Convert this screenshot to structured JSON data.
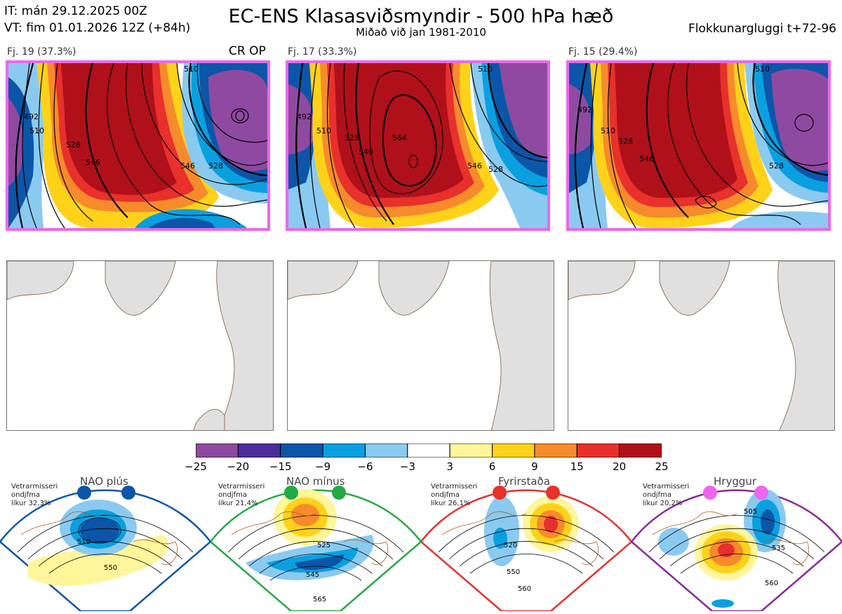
{
  "header": {
    "it": "IT: mán 29.12.2025 00Z",
    "vt": "VT: fim 01.01.2026 12Z  (+84h)",
    "title": "EC-ENS Klasasviðsmyndir - 500 hPa hæð",
    "subtitle": "Miðað við jan 1981-2010",
    "window": "Flokkunargluggi t+72-96"
  },
  "clusters": [
    {
      "label": "Fj. 19 (37.3%)",
      "extra": "CR OP",
      "border": "#ee66ee",
      "contour_labels": [
        "492",
        "510",
        "528",
        "546",
        "546",
        "528",
        "510"
      ]
    },
    {
      "label": "Fj. 17 (33.3%)",
      "extra": "",
      "border": "#ee66ee",
      "contour_labels": [
        "492",
        "510",
        "528",
        "546",
        "564",
        "546",
        "528",
        "510"
      ]
    },
    {
      "label": "Fj. 15 (29.4%)",
      "extra": "",
      "border": "#ee66ee",
      "contour_labels": [
        "492",
        "510",
        "528",
        "546",
        "528",
        "510"
      ]
    }
  ],
  "colorbar": {
    "colors": [
      "#8e4aa0",
      "#4a2e9a",
      "#0b56a8",
      "#0aa0e0",
      "#8acaf0",
      "#ffffff",
      "#fff59a",
      "#ffd21a",
      "#f68b2c",
      "#e8302c",
      "#b0101a"
    ],
    "ticks": [
      "−25",
      "−20",
      "−15",
      "−9",
      "−6",
      "−3",
      "3",
      "6",
      "9",
      "15",
      "20",
      "25"
    ]
  },
  "regimes": [
    {
      "title": "NAO plús",
      "note": [
        "Vetrarmisseri",
        "ondjfma",
        "líkur 32,3%"
      ],
      "frame": "#0b56a8",
      "dot": "#0b56a8",
      "labels": [
        "510",
        "550"
      ]
    },
    {
      "title": "NAO mínus",
      "note": [
        "Vetrarmisseri",
        "ondjfma",
        "líkur 21,4%"
      ],
      "frame": "#22aa44",
      "dot": "#22aa44",
      "labels": [
        "525",
        "545",
        "565"
      ]
    },
    {
      "title": "Fyrirstaða",
      "note": [
        "Vetrarmisseri",
        "ondjfma",
        "líkur 26,1%"
      ],
      "frame": "#e8302c",
      "dot": "#e8302c",
      "labels": [
        "520",
        "550",
        "560"
      ]
    },
    {
      "title": "Hryggur",
      "note": [
        "Vetrarmisseri",
        "ondjfma",
        "líkur 20,2%"
      ],
      "frame": "#8a2a9a",
      "dot": "#ee66ee",
      "labels": [
        "505",
        "535",
        "560"
      ]
    }
  ]
}
